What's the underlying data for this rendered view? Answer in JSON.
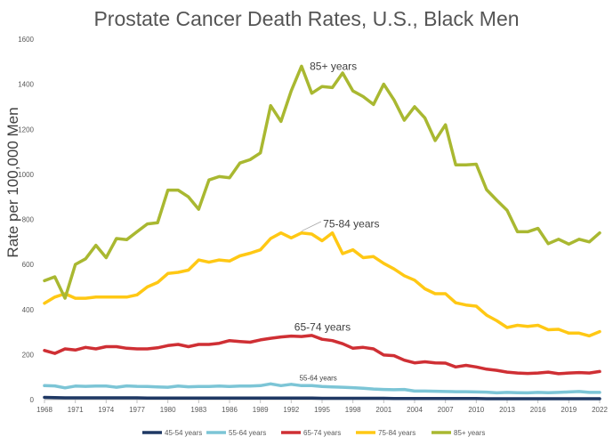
{
  "chart_data": {
    "type": "line",
    "title": "Prostate Cancer Death Rates, U.S., Black Men",
    "ylabel": "Rate per 100,000 Men",
    "xlabel": "",
    "ylim": [
      0,
      1600
    ],
    "y_ticks": [
      "0",
      "200",
      "400",
      "600",
      "800",
      "1000",
      "1200",
      "1400",
      "1600"
    ],
    "x_tick_labels": [
      "1968",
      "1971",
      "1974",
      "1977",
      "1980",
      "1983",
      "1986",
      "1989",
      "1992",
      "1995",
      "1998",
      "2001",
      "2004",
      "2007",
      "2010",
      "2013",
      "2016",
      "2019",
      "2022"
    ],
    "grid": false,
    "legend": "bottom",
    "x": [
      1968,
      1969,
      1970,
      1971,
      1972,
      1973,
      1974,
      1975,
      1976,
      1977,
      1978,
      1979,
      1980,
      1981,
      1982,
      1983,
      1984,
      1985,
      1986,
      1987,
      1988,
      1989,
      1990,
      1991,
      1992,
      1993,
      1994,
      1995,
      1996,
      1997,
      1998,
      1999,
      2000,
      2001,
      2002,
      2003,
      2004,
      2005,
      2006,
      2007,
      2008,
      2009,
      2010,
      2011,
      2012,
      2013,
      2014,
      2015,
      2016,
      2017,
      2018,
      2019,
      2020,
      2021,
      2022
    ],
    "series": [
      {
        "name": "45-54 years",
        "color": "#1f3864",
        "values": [
          10,
          9,
          8,
          8,
          8,
          8,
          8,
          8,
          8,
          8,
          7,
          7,
          7,
          7,
          7,
          7,
          7,
          7,
          7,
          7,
          7,
          7,
          7,
          7,
          7,
          7,
          7,
          6,
          6,
          6,
          6,
          6,
          6,
          6,
          5,
          5,
          5,
          5,
          5,
          5,
          5,
          5,
          5,
          4,
          4,
          4,
          4,
          4,
          4,
          4,
          4,
          4,
          4,
          4,
          4
        ]
      },
      {
        "name": "55-64 years",
        "color": "#7cc5d6",
        "values": [
          62,
          61,
          52,
          60,
          59,
          60,
          60,
          55,
          61,
          59,
          58,
          56,
          55,
          60,
          57,
          58,
          58,
          60,
          58,
          60,
          60,
          62,
          70,
          62,
          68,
          62,
          62,
          58,
          56,
          55,
          53,
          50,
          47,
          45,
          44,
          45,
          38,
          38,
          37,
          36,
          35,
          35,
          34,
          33,
          30,
          32,
          31,
          30,
          32,
          31,
          32,
          34,
          36,
          32,
          32
        ]
      },
      {
        "name": "65-74 years",
        "color": "#cf2f34",
        "values": [
          218,
          205,
          225,
          220,
          232,
          225,
          235,
          235,
          228,
          225,
          225,
          230,
          240,
          245,
          235,
          245,
          245,
          250,
          262,
          258,
          255,
          265,
          272,
          278,
          282,
          280,
          285,
          268,
          262,
          248,
          228,
          232,
          225,
          198,
          195,
          175,
          163,
          168,
          163,
          162,
          145,
          152,
          145,
          135,
          130,
          122,
          118,
          116,
          118,
          122,
          115,
          118,
          120,
          118,
          125
        ]
      },
      {
        "name": "75-84 years",
        "color": "#ffc814",
        "values": [
          428,
          455,
          470,
          450,
          450,
          455,
          455,
          455,
          455,
          465,
          500,
          520,
          560,
          565,
          575,
          620,
          610,
          620,
          615,
          638,
          650,
          665,
          715,
          740,
          718,
          740,
          735,
          705,
          740,
          648,
          665,
          630,
          635,
          605,
          580,
          550,
          530,
          492,
          470,
          470,
          430,
          420,
          415,
          375,
          350,
          320,
          330,
          325,
          330,
          310,
          312,
          295,
          295,
          283,
          302
        ]
      },
      {
        "name": "85+ years",
        "color": "#a9b831",
        "values": [
          528,
          545,
          450,
          600,
          625,
          685,
          630,
          715,
          710,
          745,
          780,
          785,
          930,
          930,
          900,
          845,
          975,
          990,
          985,
          1050,
          1065,
          1095,
          1305,
          1235,
          1370,
          1480,
          1360,
          1390,
          1385,
          1450,
          1370,
          1345,
          1310,
          1400,
          1330,
          1240,
          1300,
          1250,
          1150,
          1220,
          1042,
          1042,
          1045,
          932,
          885,
          840,
          745,
          745,
          760,
          692,
          712,
          690,
          712,
          700,
          740
        ]
      }
    ],
    "annotations": [
      {
        "text": "85+ years",
        "series": "85+ years"
      },
      {
        "text": "75-84 years",
        "series": "75-84 years"
      },
      {
        "text": "65-74 years",
        "series": "65-74 years"
      },
      {
        "text": "55-64 years",
        "series": "55-64 years"
      }
    ]
  }
}
